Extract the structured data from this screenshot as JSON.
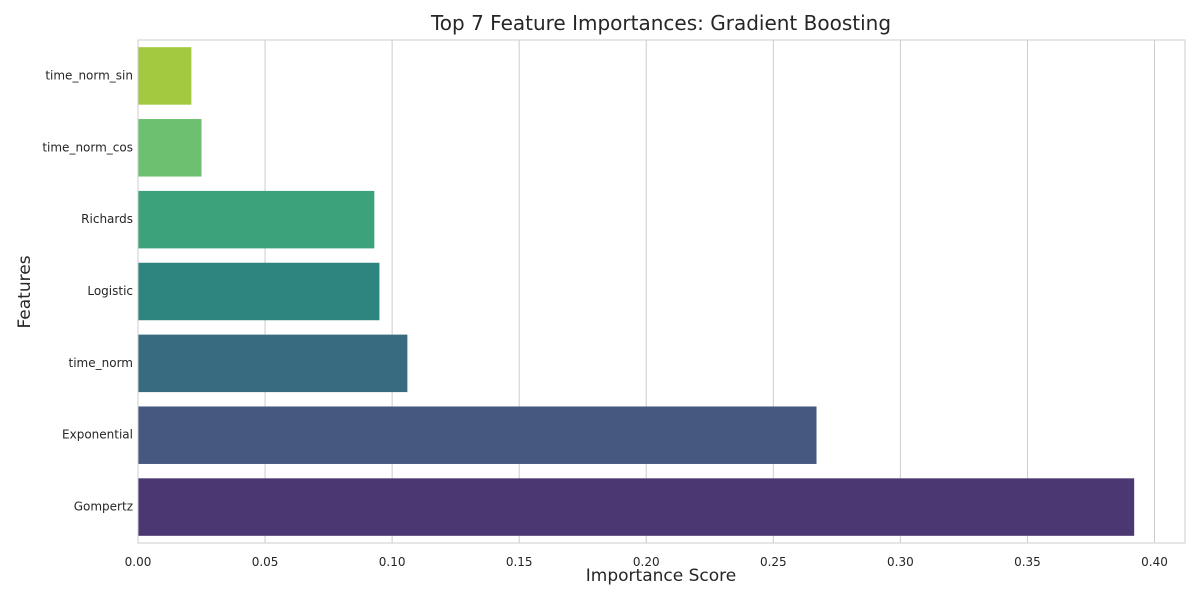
{
  "chart_data": {
    "type": "bar",
    "orientation": "horizontal",
    "title": "Top 7 Feature Importances: Gradient Boosting",
    "xlabel": "Importance Score",
    "ylabel": "Features",
    "xlim": [
      0,
      0.412
    ],
    "grid": "vertical",
    "x_ticks": [
      "0.00",
      "0.05",
      "0.10",
      "0.15",
      "0.20",
      "0.25",
      "0.30",
      "0.35",
      "0.40"
    ],
    "categories": [
      "time_norm_sin",
      "time_norm_cos",
      "Richards",
      "Logistic",
      "time_norm",
      "Exponential",
      "Gompertz"
    ],
    "values": [
      0.021,
      0.025,
      0.093,
      0.095,
      0.106,
      0.267,
      0.392
    ],
    "colors": [
      "#a2c940",
      "#6cc06f",
      "#3ba27b",
      "#2e8580",
      "#386b80",
      "#46587f",
      "#4b3873"
    ]
  }
}
